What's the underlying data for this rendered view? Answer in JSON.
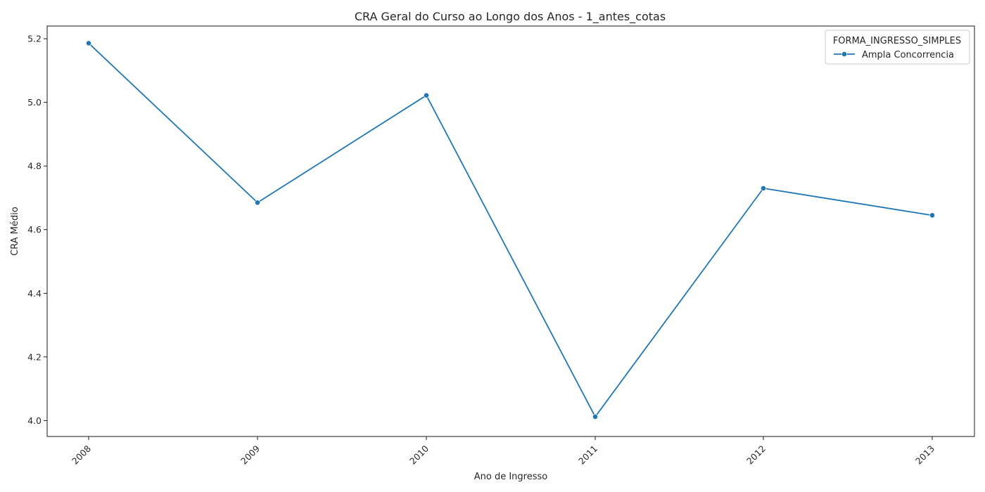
{
  "chart_data": {
    "type": "line",
    "title": "CRA Geral do Curso ao Longo dos Anos - 1_antes_cotas",
    "xlabel": "Ano de Ingresso",
    "ylabel": "CRA Médio",
    "x": [
      "2008",
      "2009",
      "2010",
      "2011",
      "2012",
      "2013"
    ],
    "series": [
      {
        "name": "Ampla Concorrencia",
        "color": "#1f77b4",
        "values": [
          5.186,
          4.685,
          5.022,
          4.012,
          4.73,
          4.645
        ]
      }
    ],
    "ylim": [
      3.95,
      5.24
    ],
    "yticks": [
      4.0,
      4.2,
      4.4,
      4.6,
      4.8,
      5.0,
      5.2
    ],
    "ytick_labels": [
      "4.0",
      "4.2",
      "4.4",
      "4.6",
      "4.8",
      "5.0",
      "5.2"
    ],
    "grid": false,
    "legend": {
      "title": "FORMA_INGRESSO_SIMPLES",
      "placement": "top-right"
    },
    "x_tick_rotation": 45
  }
}
